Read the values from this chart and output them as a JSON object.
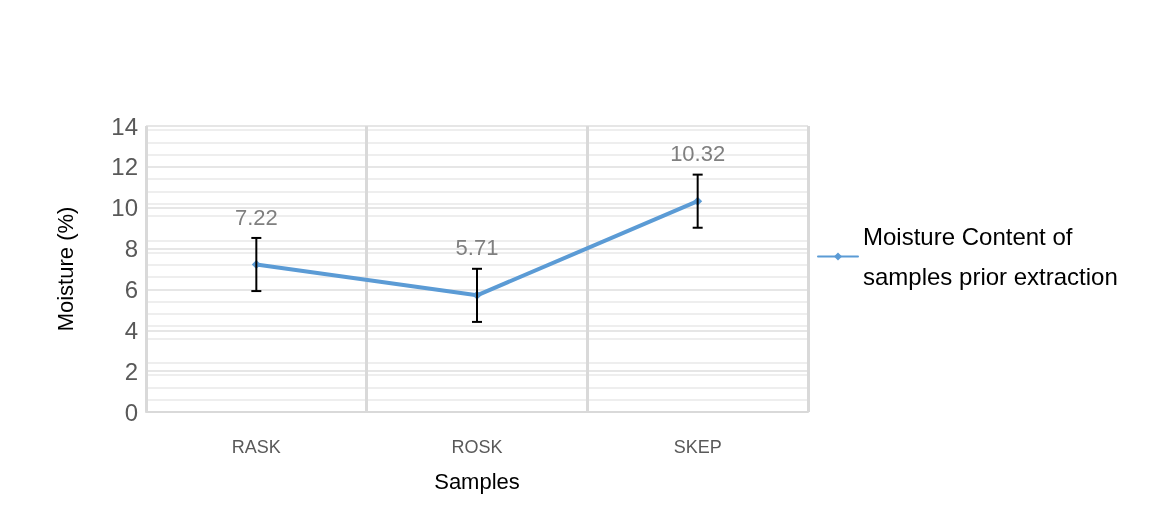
{
  "chart_data": {
    "type": "line",
    "xlabel": "Samples",
    "ylabel": "Moisture (%)",
    "categories": [
      "RASK",
      "ROSK",
      "SKEP"
    ],
    "series": [
      {
        "name": "Moisture Content of samples prior extraction",
        "color": "#5b9bd5",
        "values": [
          7.22,
          5.71,
          10.32
        ],
        "errors": [
          1.3,
          1.3,
          1.3
        ]
      }
    ],
    "ylim": [
      0,
      14
    ],
    "yticks": [
      0,
      2,
      4,
      6,
      8,
      10,
      12,
      14
    ],
    "grid": true,
    "legend": "right",
    "marker": "diamond",
    "line_style": "solid",
    "data_labels": true
  }
}
